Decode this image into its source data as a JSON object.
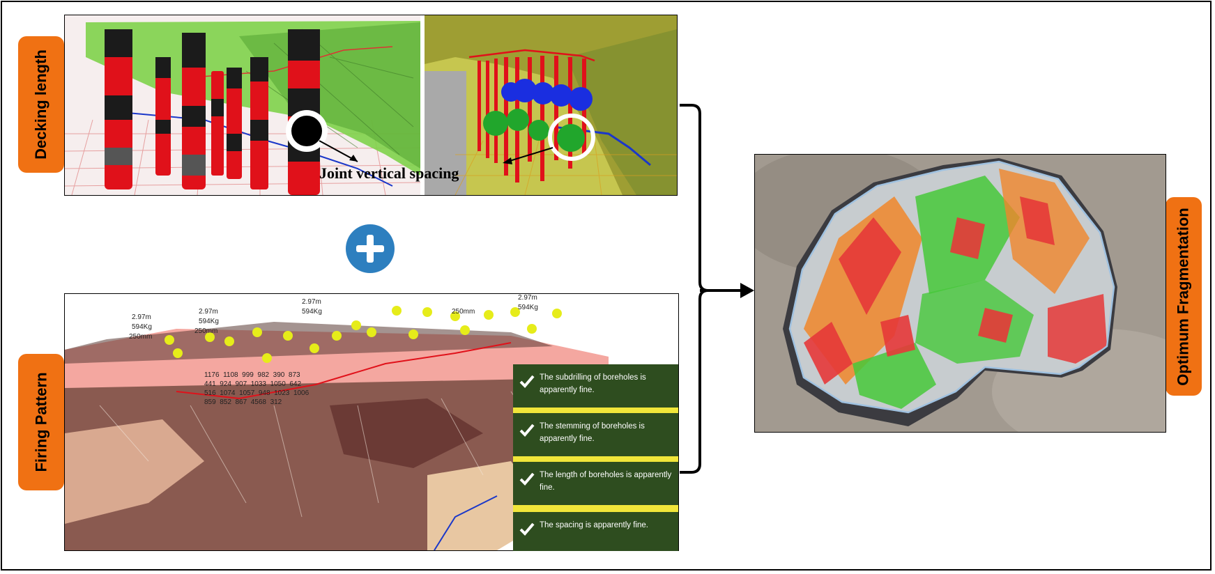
{
  "labels": {
    "decking_length": "Decking length",
    "firing_pattern": "Firing Pattern",
    "optimum_fragmentation": "Optimum Fragmentation",
    "joint_vertical_spacing": "Joint vertical spacing"
  },
  "checklist": [
    {
      "text": "The subdrilling of boreholes is apparently fine."
    },
    {
      "text": "The stemming of boreholes is apparently fine."
    },
    {
      "text": "The length of boreholes is apparently fine."
    },
    {
      "text": "The spacing is apparently fine."
    }
  ],
  "hole_labels": {
    "depth": "2.97m",
    "mass": "594Kg",
    "spacing": "250mm",
    "numbers": [
      "1176",
      "1108",
      "999",
      "982",
      "390",
      "873",
      "441",
      "924",
      "907",
      "1033",
      "1050",
      "642",
      "516",
      "1074",
      "1057",
      "948",
      "1023",
      "1006",
      "859",
      "852",
      "867",
      "4568",
      "312"
    ]
  },
  "colors": {
    "tab_orange": "#f07113",
    "plus_blue": "#2d7fbf",
    "check_bg": "#2e4d1f",
    "charge_red": "#e0111a",
    "terrain_green": "#7fd14a"
  }
}
